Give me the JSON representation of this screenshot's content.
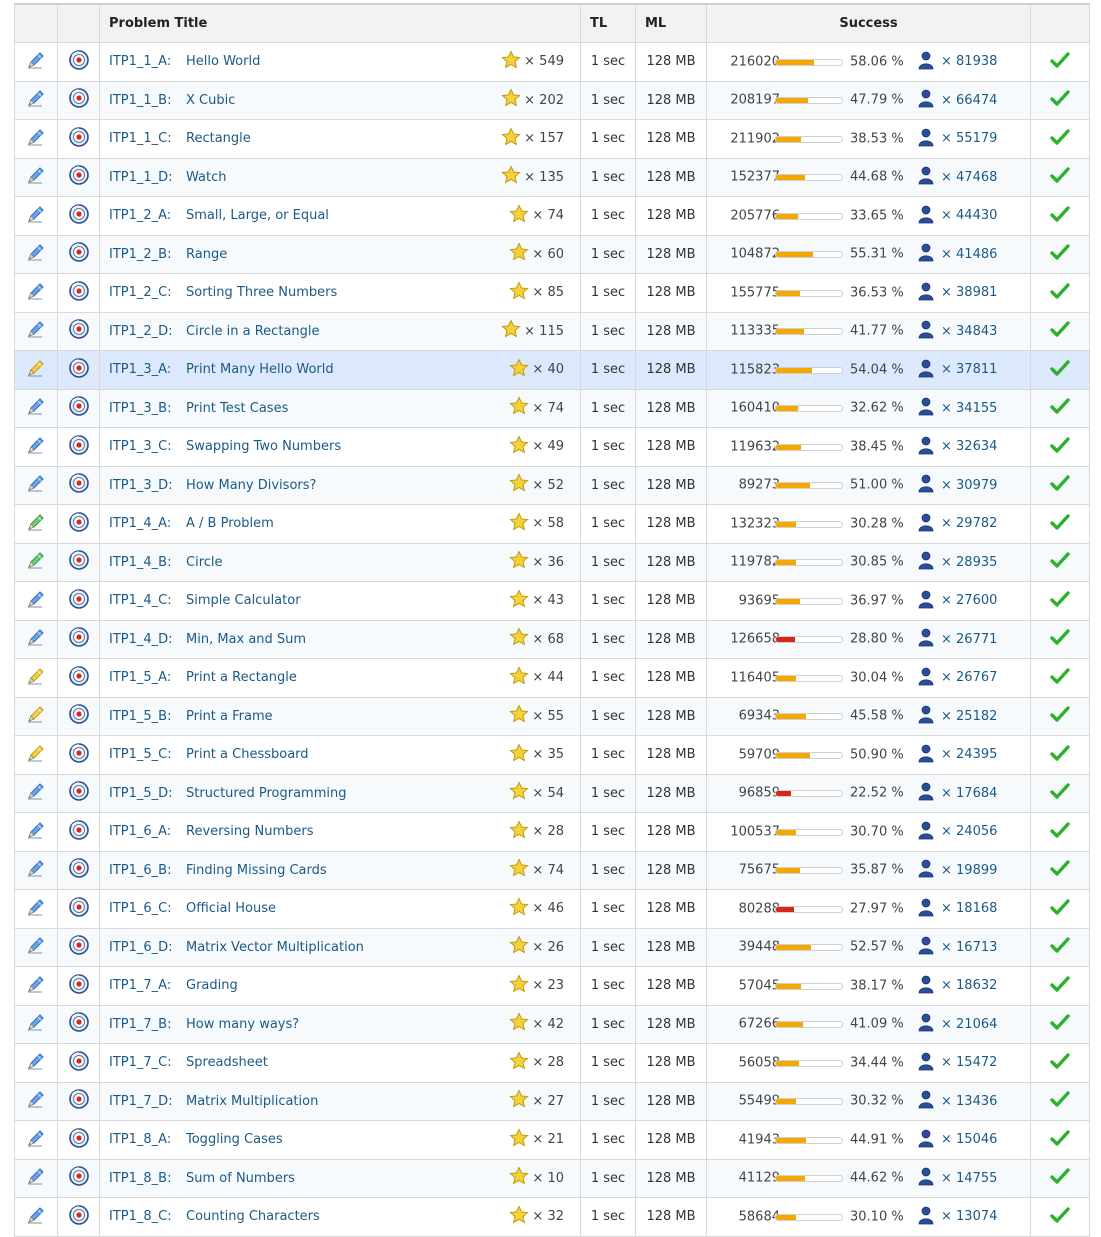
{
  "header": {
    "title": "Problem Title",
    "tl": "TL",
    "ml": "ML",
    "success": "Success"
  },
  "colors": {
    "link": "#1b5a86",
    "bar_normal": "#f5a800",
    "bar_low": "#d9261c",
    "selected_row": "#dce8fb"
  },
  "icons": {
    "edit": "pencil-icon",
    "view": "circular-eye-icon",
    "star": "star-icon",
    "user": "user-icon",
    "solved": "checkmark-icon"
  },
  "problems": [
    {
      "id": "ITP1_1_A:",
      "title": "Hello World",
      "stars": "× 549",
      "tl": "1 sec",
      "ml": "128 MB",
      "submissions": "216020",
      "rate": "58.06 %",
      "rate_value": 58.06,
      "users": "× 81938",
      "pencil": "blue"
    },
    {
      "id": "ITP1_1_B:",
      "title": "X Cubic",
      "stars": "× 202",
      "tl": "1 sec",
      "ml": "128 MB",
      "submissions": "208197",
      "rate": "47.79 %",
      "rate_value": 47.79,
      "users": "× 66474",
      "pencil": "blue"
    },
    {
      "id": "ITP1_1_C:",
      "title": "Rectangle",
      "stars": "× 157",
      "tl": "1 sec",
      "ml": "128 MB",
      "submissions": "211902",
      "rate": "38.53 %",
      "rate_value": 38.53,
      "users": "× 55179",
      "pencil": "blue"
    },
    {
      "id": "ITP1_1_D:",
      "title": "Watch",
      "stars": "× 135",
      "tl": "1 sec",
      "ml": "128 MB",
      "submissions": "152377",
      "rate": "44.68 %",
      "rate_value": 44.68,
      "users": "× 47468",
      "pencil": "blue"
    },
    {
      "id": "ITP1_2_A:",
      "title": "Small, Large, or Equal",
      "stars": "× 74",
      "tl": "1 sec",
      "ml": "128 MB",
      "submissions": "205776",
      "rate": "33.65 %",
      "rate_value": 33.65,
      "users": "× 44430",
      "pencil": "blue"
    },
    {
      "id": "ITP1_2_B:",
      "title": "Range",
      "stars": "× 60",
      "tl": "1 sec",
      "ml": "128 MB",
      "submissions": "104872",
      "rate": "55.31 %",
      "rate_value": 55.31,
      "users": "× 41486",
      "pencil": "blue"
    },
    {
      "id": "ITP1_2_C:",
      "title": "Sorting Three Numbers",
      "stars": "× 85",
      "tl": "1 sec",
      "ml": "128 MB",
      "submissions": "155775",
      "rate": "36.53 %",
      "rate_value": 36.53,
      "users": "× 38981",
      "pencil": "blue"
    },
    {
      "id": "ITP1_2_D:",
      "title": "Circle in a Rectangle",
      "stars": "× 115",
      "tl": "1 sec",
      "ml": "128 MB",
      "submissions": "113335",
      "rate": "41.77 %",
      "rate_value": 41.77,
      "users": "× 34843",
      "pencil": "blue"
    },
    {
      "id": "ITP1_3_A:",
      "title": "Print Many Hello World",
      "stars": "× 40",
      "tl": "1 sec",
      "ml": "128 MB",
      "submissions": "115823",
      "rate": "54.04 %",
      "rate_value": 54.04,
      "users": "× 37811",
      "pencil": "yellow",
      "selected": true
    },
    {
      "id": "ITP1_3_B:",
      "title": "Print Test Cases",
      "stars": "× 74",
      "tl": "1 sec",
      "ml": "128 MB",
      "submissions": "160410",
      "rate": "32.62 %",
      "rate_value": 32.62,
      "users": "× 34155",
      "pencil": "blue"
    },
    {
      "id": "ITP1_3_C:",
      "title": "Swapping Two Numbers",
      "stars": "× 49",
      "tl": "1 sec",
      "ml": "128 MB",
      "submissions": "119632",
      "rate": "38.45 %",
      "rate_value": 38.45,
      "users": "× 32634",
      "pencil": "blue"
    },
    {
      "id": "ITP1_3_D:",
      "title": "How Many Divisors?",
      "stars": "× 52",
      "tl": "1 sec",
      "ml": "128 MB",
      "submissions": "89273",
      "rate": "51.00 %",
      "rate_value": 51.0,
      "users": "× 30979",
      "pencil": "blue"
    },
    {
      "id": "ITP1_4_A:",
      "title": "A / B Problem",
      "stars": "× 58",
      "tl": "1 sec",
      "ml": "128 MB",
      "submissions": "132323",
      "rate": "30.28 %",
      "rate_value": 30.28,
      "users": "× 29782",
      "pencil": "green"
    },
    {
      "id": "ITP1_4_B:",
      "title": "Circle",
      "stars": "× 36",
      "tl": "1 sec",
      "ml": "128 MB",
      "submissions": "119782",
      "rate": "30.85 %",
      "rate_value": 30.85,
      "users": "× 28935",
      "pencil": "green"
    },
    {
      "id": "ITP1_4_C:",
      "title": "Simple Calculator",
      "stars": "× 43",
      "tl": "1 sec",
      "ml": "128 MB",
      "submissions": "93695",
      "rate": "36.97 %",
      "rate_value": 36.97,
      "users": "× 27600",
      "pencil": "blue"
    },
    {
      "id": "ITP1_4_D:",
      "title": "Min, Max and Sum",
      "stars": "× 68",
      "tl": "1 sec",
      "ml": "128 MB",
      "submissions": "126658",
      "rate": "28.80 %",
      "rate_value": 28.8,
      "users": "× 26771",
      "pencil": "blue",
      "low": true
    },
    {
      "id": "ITP1_5_A:",
      "title": "Print a Rectangle",
      "stars": "× 44",
      "tl": "1 sec",
      "ml": "128 MB",
      "submissions": "116405",
      "rate": "30.04 %",
      "rate_value": 30.04,
      "users": "× 26767",
      "pencil": "yellow"
    },
    {
      "id": "ITP1_5_B:",
      "title": "Print a Frame",
      "stars": "× 55",
      "tl": "1 sec",
      "ml": "128 MB",
      "submissions": "69343",
      "rate": "45.58 %",
      "rate_value": 45.58,
      "users": "× 25182",
      "pencil": "yellow"
    },
    {
      "id": "ITP1_5_C:",
      "title": "Print a Chessboard",
      "stars": "× 35",
      "tl": "1 sec",
      "ml": "128 MB",
      "submissions": "59709",
      "rate": "50.90 %",
      "rate_value": 50.9,
      "users": "× 24395",
      "pencil": "yellow"
    },
    {
      "id": "ITP1_5_D:",
      "title": "Structured Programming",
      "stars": "× 54",
      "tl": "1 sec",
      "ml": "128 MB",
      "submissions": "96859",
      "rate": "22.52 %",
      "rate_value": 22.52,
      "users": "× 17684",
      "pencil": "blue",
      "low": true
    },
    {
      "id": "ITP1_6_A:",
      "title": "Reversing Numbers",
      "stars": "× 28",
      "tl": "1 sec",
      "ml": "128 MB",
      "submissions": "100537",
      "rate": "30.70 %",
      "rate_value": 30.7,
      "users": "× 24056",
      "pencil": "blue"
    },
    {
      "id": "ITP1_6_B:",
      "title": "Finding Missing Cards",
      "stars": "× 74",
      "tl": "1 sec",
      "ml": "128 MB",
      "submissions": "75675",
      "rate": "35.87 %",
      "rate_value": 35.87,
      "users": "× 19899",
      "pencil": "blue"
    },
    {
      "id": "ITP1_6_C:",
      "title": "Official House",
      "stars": "× 46",
      "tl": "1 sec",
      "ml": "128 MB",
      "submissions": "80288",
      "rate": "27.97 %",
      "rate_value": 27.97,
      "users": "× 18168",
      "pencil": "blue",
      "low": true
    },
    {
      "id": "ITP1_6_D:",
      "title": "Matrix Vector Multiplication",
      "stars": "× 26",
      "tl": "1 sec",
      "ml": "128 MB",
      "submissions": "39448",
      "rate": "52.57 %",
      "rate_value": 52.57,
      "users": "× 16713",
      "pencil": "blue"
    },
    {
      "id": "ITP1_7_A:",
      "title": "Grading",
      "stars": "× 23",
      "tl": "1 sec",
      "ml": "128 MB",
      "submissions": "57045",
      "rate": "38.17 %",
      "rate_value": 38.17,
      "users": "× 18632",
      "pencil": "blue"
    },
    {
      "id": "ITP1_7_B:",
      "title": "How many ways?",
      "stars": "× 42",
      "tl": "1 sec",
      "ml": "128 MB",
      "submissions": "67266",
      "rate": "41.09 %",
      "rate_value": 41.09,
      "users": "× 21064",
      "pencil": "blue"
    },
    {
      "id": "ITP1_7_C:",
      "title": "Spreadsheet",
      "stars": "× 28",
      "tl": "1 sec",
      "ml": "128 MB",
      "submissions": "56058",
      "rate": "34.44 %",
      "rate_value": 34.44,
      "users": "× 15472",
      "pencil": "blue"
    },
    {
      "id": "ITP1_7_D:",
      "title": "Matrix Multiplication",
      "stars": "× 27",
      "tl": "1 sec",
      "ml": "128 MB",
      "submissions": "55499",
      "rate": "30.32 %",
      "rate_value": 30.32,
      "users": "× 13436",
      "pencil": "blue"
    },
    {
      "id": "ITP1_8_A:",
      "title": "Toggling Cases",
      "stars": "× 21",
      "tl": "1 sec",
      "ml": "128 MB",
      "submissions": "41943",
      "rate": "44.91 %",
      "rate_value": 44.91,
      "users": "× 15046",
      "pencil": "blue"
    },
    {
      "id": "ITP1_8_B:",
      "title": "Sum of Numbers",
      "stars": "× 10",
      "tl": "1 sec",
      "ml": "128 MB",
      "submissions": "41129",
      "rate": "44.62 %",
      "rate_value": 44.62,
      "users": "× 14755",
      "pencil": "blue"
    },
    {
      "id": "ITP1_8_C:",
      "title": "Counting Characters",
      "stars": "× 32",
      "tl": "1 sec",
      "ml": "128 MB",
      "submissions": "58684",
      "rate": "30.10 %",
      "rate_value": 30.1,
      "users": "× 13074",
      "pencil": "blue"
    }
  ]
}
